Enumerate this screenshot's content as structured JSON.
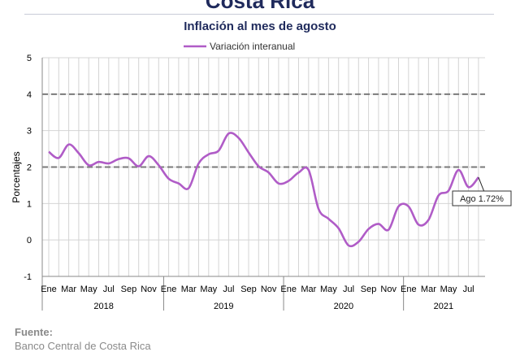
{
  "page": {
    "title": "Costa Rica",
    "footer_label": "Fuente:",
    "footer_source": "Banco Central de Costa Rica"
  },
  "chart_data": {
    "type": "line",
    "title": "Inflación al mes de agosto",
    "xlabel": "",
    "ylabel": "Porcentajes",
    "ylim": [
      -1,
      5
    ],
    "yticks": [
      -1,
      0,
      1,
      2,
      3,
      4,
      5
    ],
    "grid": true,
    "legend_position": "top-center",
    "reference_lines": [
      2,
      4
    ],
    "month_ticks": [
      "Ene",
      "Mar",
      "May",
      "Jul",
      "Sep",
      "Nov",
      "Ene",
      "Mar",
      "May",
      "Jul",
      "Sep",
      "Nov",
      "Ene",
      "Mar",
      "May",
      "Jul",
      "Sep",
      "Nov",
      "Ene",
      "Mar",
      "May",
      "Jul"
    ],
    "year_labels": [
      "2018",
      "2019",
      "2020",
      "2021"
    ],
    "x": [
      "2018-01",
      "2018-02",
      "2018-03",
      "2018-04",
      "2018-05",
      "2018-06",
      "2018-07",
      "2018-08",
      "2018-09",
      "2018-10",
      "2018-11",
      "2018-12",
      "2019-01",
      "2019-02",
      "2019-03",
      "2019-04",
      "2019-05",
      "2019-06",
      "2019-07",
      "2019-08",
      "2019-09",
      "2019-10",
      "2019-11",
      "2019-12",
      "2020-01",
      "2020-02",
      "2020-03",
      "2020-04",
      "2020-05",
      "2020-06",
      "2020-07",
      "2020-08",
      "2020-09",
      "2020-10",
      "2020-11",
      "2020-12",
      "2021-01",
      "2021-02",
      "2021-03",
      "2021-04",
      "2021-05",
      "2021-06",
      "2021-07",
      "2021-08"
    ],
    "series": [
      {
        "name": "Variación interanual",
        "color": "#b05cc7",
        "values": [
          2.42,
          2.25,
          2.62,
          2.38,
          2.05,
          2.14,
          2.1,
          2.22,
          2.24,
          2.02,
          2.3,
          2.05,
          1.68,
          1.55,
          1.42,
          2.1,
          2.35,
          2.45,
          2.92,
          2.8,
          2.4,
          2.02,
          1.85,
          1.55,
          1.62,
          1.85,
          1.92,
          0.85,
          0.58,
          0.32,
          -0.15,
          -0.05,
          0.3,
          0.44,
          0.28,
          0.92,
          0.92,
          0.42,
          0.55,
          1.22,
          1.35,
          1.92,
          1.45,
          1.72
        ]
      }
    ],
    "annotation": "Ago 1.72%"
  }
}
